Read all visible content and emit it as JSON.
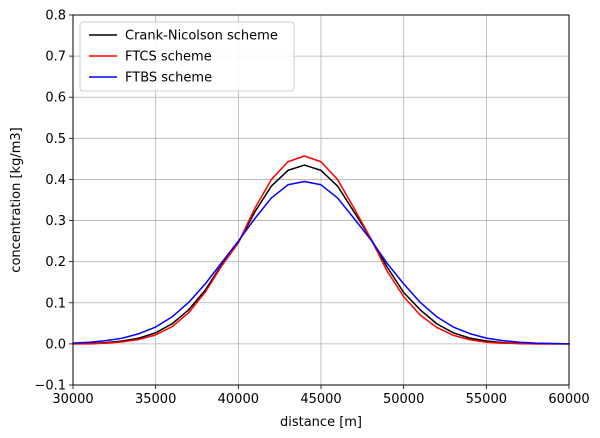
{
  "chart_data": {
    "type": "line",
    "title": "",
    "xlabel": "distance [m]",
    "ylabel": "concentration [kg/m3]",
    "xlim": [
      30000,
      60000
    ],
    "ylim": [
      -0.1,
      0.8
    ],
    "xticks": [
      30000,
      35000,
      40000,
      45000,
      50000,
      55000,
      60000
    ],
    "yticks": [
      -0.1,
      0.0,
      0.1,
      0.2,
      0.3,
      0.4,
      0.5,
      0.6,
      0.7,
      0.8
    ],
    "xtick_labels": [
      "30000",
      "35000",
      "40000",
      "45000",
      "50000",
      "55000",
      "60000"
    ],
    "ytick_labels": [
      "−0.1",
      "0.0",
      "0.1",
      "0.2",
      "0.3",
      "0.4",
      "0.5",
      "0.6",
      "0.7",
      "0.8"
    ],
    "grid": true,
    "legend_position": "top-left",
    "x": [
      30000,
      31000,
      32000,
      33000,
      34000,
      35000,
      36000,
      37000,
      38000,
      39000,
      40000,
      41000,
      42000,
      43000,
      44000,
      45000,
      46000,
      47000,
      48000,
      49000,
      50000,
      51000,
      52000,
      53000,
      54000,
      55000,
      56000,
      57000,
      58000,
      59000,
      60000
    ],
    "series": [
      {
        "name": "Crank-Nicolson scheme",
        "color": "#000000",
        "values": [
          0.0,
          0.001,
          0.003,
          0.007,
          0.014,
          0.027,
          0.049,
          0.083,
          0.131,
          0.193,
          0.246,
          0.321,
          0.384,
          0.422,
          0.435,
          0.422,
          0.384,
          0.321,
          0.257,
          0.187,
          0.125,
          0.083,
          0.049,
          0.027,
          0.014,
          0.007,
          0.003,
          0.001,
          0.0,
          0.0,
          0.0
        ]
      },
      {
        "name": "FTCS scheme",
        "color": "#ff0000",
        "values": [
          0.0,
          0.0,
          0.002,
          0.005,
          0.011,
          0.022,
          0.042,
          0.076,
          0.126,
          0.19,
          0.246,
          0.33,
          0.4,
          0.443,
          0.457,
          0.443,
          0.4,
          0.33,
          0.257,
          0.177,
          0.115,
          0.07,
          0.04,
          0.021,
          0.01,
          0.004,
          0.002,
          0.001,
          0.0,
          0.0,
          0.0
        ]
      },
      {
        "name": "FTBS scheme",
        "color": "#0000ff",
        "values": [
          0.002,
          0.004,
          0.008,
          0.014,
          0.025,
          0.041,
          0.066,
          0.101,
          0.146,
          0.198,
          0.25,
          0.305,
          0.355,
          0.387,
          0.395,
          0.387,
          0.355,
          0.305,
          0.254,
          0.196,
          0.146,
          0.101,
          0.066,
          0.041,
          0.025,
          0.014,
          0.008,
          0.004,
          0.002,
          0.001,
          0.0
        ]
      }
    ]
  }
}
